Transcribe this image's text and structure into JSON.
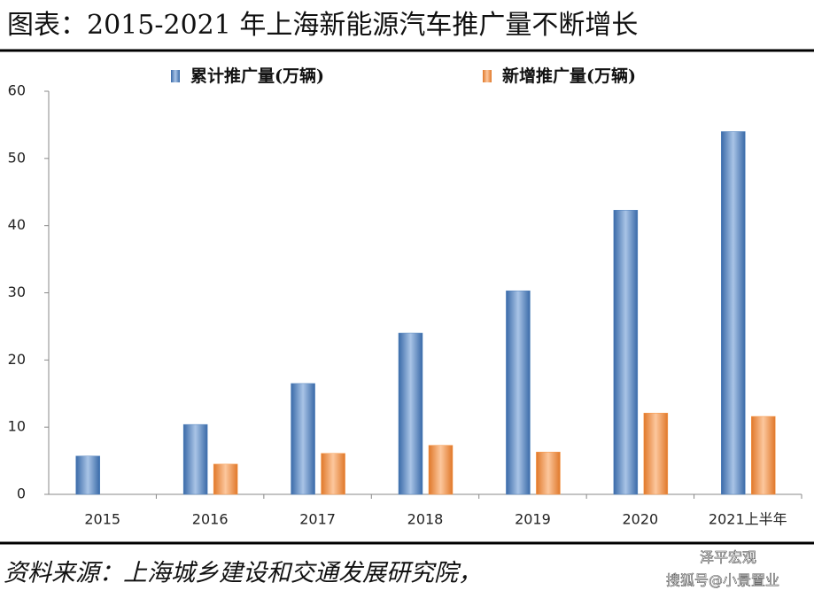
{
  "chart_data": {
    "type": "bar",
    "title": "图表：2015-2021 年上海新能源汽车推广量不断增长",
    "categories": [
      "2015",
      "2016",
      "2017",
      "2018",
      "2019",
      "2020",
      "2021上半年"
    ],
    "series": [
      {
        "name": "累计推广量(万辆)",
        "color": "#4f81bd",
        "values": [
          5.7,
          10.4,
          16.5,
          24,
          30.3,
          42.3,
          54
        ]
      },
      {
        "name": "新增推广量(万辆)",
        "color": "#f79646",
        "values": [
          null,
          4.5,
          6.1,
          7.3,
          6.3,
          12.1,
          11.6
        ]
      }
    ],
    "ylim": [
      0,
      60
    ],
    "yticks": [
      0,
      10,
      20,
      30,
      40,
      50,
      60
    ],
    "source": "资料来源：上海城乡建设和交通发展研究院，",
    "watermark": [
      "泽平宏观",
      "搜狐号@小景置业"
    ]
  }
}
